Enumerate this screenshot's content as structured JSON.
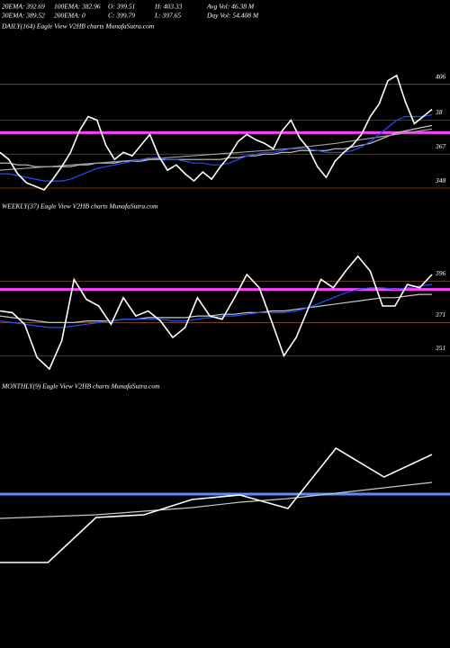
{
  "stats": [
    "20EMA: 392.69",
    "100EMA: 382.96",
    "O: 399.51",
    "H: 403.33",
    "Avg Vol: 46.38  M",
    "30EMA: 389.52",
    "200EMA: 0",
    "C: 399.79",
    "L: 397.65",
    "Day Vol: 54.408  M"
  ],
  "chart_data": [
    {
      "type": "line",
      "title": "DAILY(164) Eagle  View  V2HB charts MunafaSutra.com",
      "ylim": [
        345,
        433
      ],
      "yticks": [
        406,
        {
          "value": 386,
          "label": "38"
        },
        367,
        348
      ],
      "hlines": [
        {
          "value": 379,
          "color": "#ff40ff"
        }
      ],
      "series": [
        {
          "color": "#c8c8c8",
          "values": [
            362,
            362,
            361,
            361,
            360,
            360,
            360,
            360,
            360,
            361,
            361,
            362,
            362,
            362,
            363,
            363,
            363,
            364,
            364,
            364,
            364,
            364,
            364,
            364,
            364,
            364,
            365,
            365,
            366,
            366,
            367,
            367,
            368,
            368,
            369,
            369,
            369,
            369,
            370,
            370,
            371,
            372,
            373,
            375,
            377,
            379,
            380,
            381,
            382,
            383
          ]
        },
        {
          "color": "#a0a0a0",
          "values": [
            358,
            360,
            362,
            364,
            366,
            368,
            370,
            373,
            377,
            381
          ]
        },
        {
          "color": "#2050ff",
          "values": [
            356,
            356,
            355,
            354,
            353,
            352,
            352,
            352,
            353,
            355,
            357,
            359,
            360,
            361,
            362,
            363,
            364,
            365,
            365,
            364,
            364,
            363,
            362,
            362,
            361,
            361,
            362,
            364,
            366,
            367,
            368,
            368,
            369,
            370,
            370,
            370,
            369,
            368,
            368,
            368,
            369,
            371,
            374,
            378,
            382,
            386,
            388,
            388,
            388,
            389
          ]
        },
        {
          "color": "#ffffff",
          "values": [
            368,
            364,
            356,
            351,
            349,
            347,
            353,
            360,
            368,
            380,
            388,
            386,
            372,
            364,
            368,
            366,
            372,
            378,
            366,
            358,
            361,
            356,
            352,
            357,
            353,
            360,
            366,
            374,
            378,
            375,
            373,
            370,
            380,
            386,
            376,
            370,
            360,
            354,
            363,
            368,
            372,
            378,
            388,
            395,
            408,
            411,
            396,
            384,
            388,
            392
          ]
        }
      ]
    },
    {
      "type": "line",
      "title": "WEEKLY(37) Eagle  View  V2HB charts MunafaSutra.com",
      "ylim": [
        343,
        438
      ],
      "yticks": [
        396,
        371,
        351
      ],
      "hlines": [
        {
          "value": 391,
          "color": "#ff40ff"
        }
      ],
      "series": [
        {
          "color": "#c8c8c8",
          "values": [
            375,
            374,
            373,
            372,
            371,
            371,
            371,
            372,
            372,
            372,
            373,
            373,
            374,
            374,
            374,
            374,
            375,
            375,
            376,
            376,
            377,
            377,
            378,
            378,
            379,
            380,
            381,
            382,
            383,
            384,
            385,
            386,
            386,
            387,
            388,
            388
          ]
        },
        {
          "color": "#2050ff",
          "values": [
            372,
            371,
            370,
            369,
            368,
            368,
            369,
            370,
            371,
            372,
            373,
            373,
            373,
            373,
            372,
            372,
            373,
            374,
            375,
            375,
            376,
            377,
            377,
            377,
            378,
            380,
            383,
            386,
            389,
            391,
            392,
            392,
            391,
            392,
            393,
            394
          ]
        },
        {
          "color": "#ffffff",
          "values": [
            378,
            377,
            370,
            350,
            343,
            360,
            397,
            385,
            381,
            370,
            386,
            375,
            378,
            372,
            362,
            368,
            386,
            375,
            373,
            386,
            400,
            392,
            372,
            351,
            362,
            380,
            397,
            392,
            402,
            411,
            402,
            381,
            381,
            394,
            392,
            400
          ]
        }
      ]
    },
    {
      "type": "line",
      "title": "MONTHLY(9) Eagle  View  V2HB charts MunafaSutra.com",
      "ylim": [
        280,
        420
      ],
      "hlines": [
        {
          "value": 365.5,
          "color": "#5a8cff"
        }
      ],
      "series": [
        {
          "color": "#c8c8c8",
          "values": [
            352,
            353,
            354,
            356,
            358,
            361,
            363,
            366,
            369,
            372
          ]
        },
        {
          "color": "#ffffff",
          "values": [
            327.5,
            327.5,
            352.5,
            354,
            362.5,
            365,
            357.5,
            391,
            375,
            387.5
          ]
        }
      ]
    }
  ]
}
